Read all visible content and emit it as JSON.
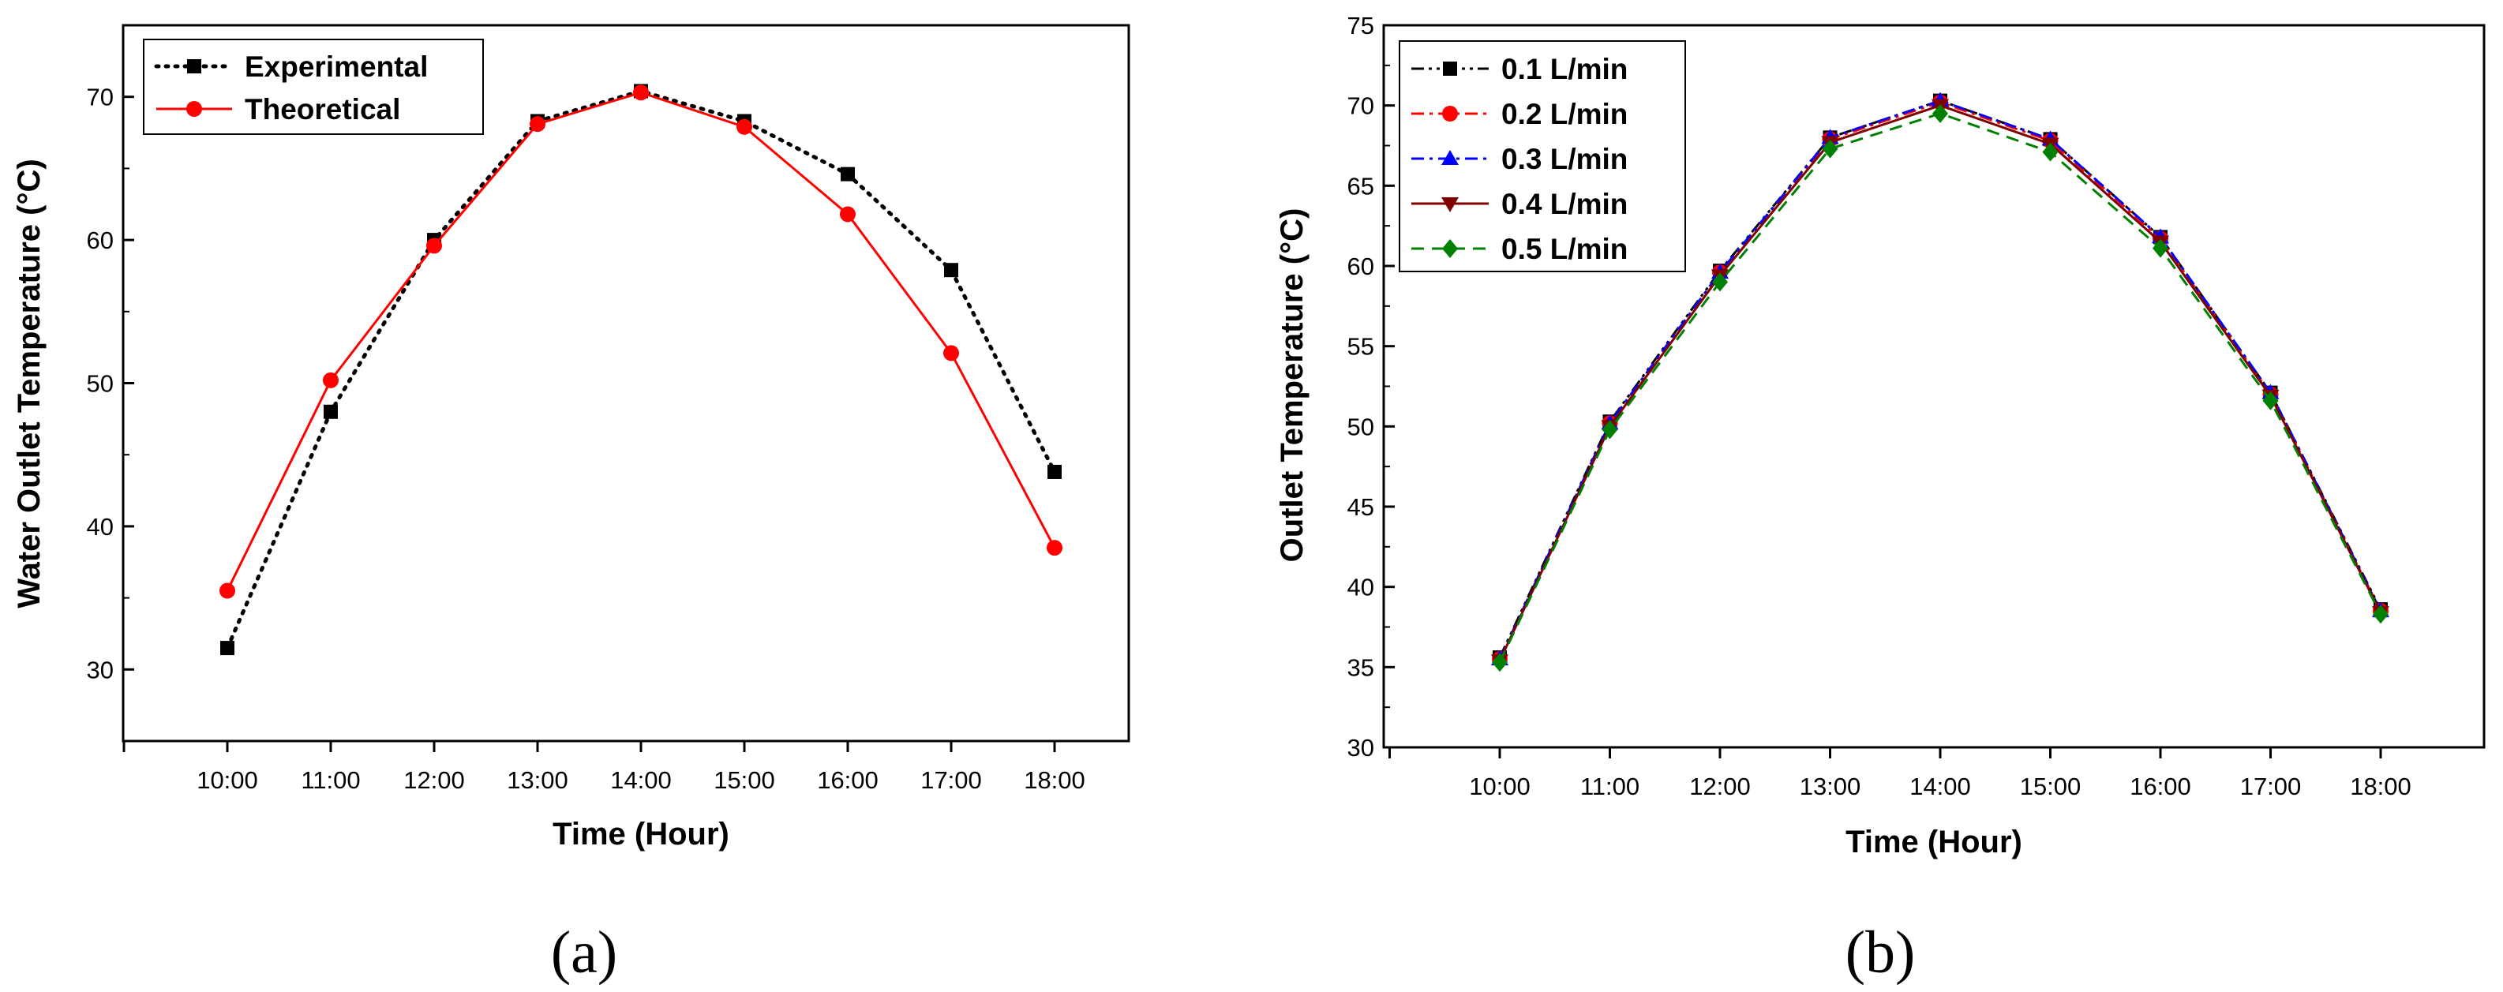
{
  "chart_data": [
    {
      "type": "line",
      "panel_label": "(a)",
      "xlabel": "Time (Hour)",
      "ylabel": "Water Outlet Temperature (°C)",
      "categories": [
        "10:00",
        "11:00",
        "12:00",
        "13:00",
        "14:00",
        "15:00",
        "16:00",
        "17:00",
        "18:00"
      ],
      "ylim": [
        25,
        75
      ],
      "yticks": [
        30,
        40,
        50,
        60,
        70
      ],
      "ytick_labels": [
        "30",
        "40",
        "50",
        "60",
        "70"
      ],
      "legend_position": "top-left",
      "grid": false,
      "series": [
        {
          "name": "Experimental",
          "values": [
            31.5,
            48.0,
            60.0,
            68.3,
            70.4,
            68.3,
            64.6,
            57.9,
            43.8
          ],
          "color": "#000000",
          "marker": "square",
          "line_style": "dotted"
        },
        {
          "name": "Theoretical",
          "values": [
            35.5,
            50.2,
            59.6,
            68.1,
            70.3,
            67.9,
            61.8,
            52.1,
            38.5
          ],
          "color": "#ff0000",
          "marker": "circle",
          "line_style": "solid"
        }
      ]
    },
    {
      "type": "line",
      "panel_label": "(b)",
      "xlabel": "Time (Hour)",
      "ylabel": "Outlet Temperature (°C)",
      "categories": [
        "10:00",
        "11:00",
        "12:00",
        "13:00",
        "14:00",
        "15:00",
        "16:00",
        "17:00",
        "18:00"
      ],
      "ylim": [
        30,
        75
      ],
      "yticks": [
        30,
        35,
        40,
        45,
        50,
        55,
        60,
        65,
        70,
        75
      ],
      "ytick_labels": [
        "30",
        "35",
        "40",
        "45",
        "50",
        "55",
        "60",
        "65",
        "70",
        "75"
      ],
      "legend_position": "top-left",
      "grid": false,
      "series": [
        {
          "name": "0.1 L/min",
          "values": [
            35.6,
            50.3,
            59.7,
            68.0,
            70.3,
            67.9,
            61.8,
            52.1,
            38.6
          ],
          "color": "#000000",
          "marker": "square",
          "line_style": "dashdotdot"
        },
        {
          "name": "0.2 L/min",
          "values": [
            35.5,
            50.2,
            59.6,
            67.9,
            70.2,
            67.8,
            61.7,
            52.0,
            38.5
          ],
          "color": "#ff0000",
          "marker": "circle",
          "line_style": "dashdot"
        },
        {
          "name": "0.3 L/min",
          "values": [
            35.5,
            50.2,
            59.6,
            68.0,
            70.3,
            67.9,
            61.8,
            52.1,
            38.5
          ],
          "color": "#0000ff",
          "marker": "triangle-up",
          "line_style": "dashdot"
        },
        {
          "name": "0.4 L/min",
          "values": [
            35.4,
            50.0,
            59.4,
            67.7,
            70.0,
            67.6,
            61.5,
            51.9,
            38.4
          ],
          "color": "#800000",
          "marker": "triangle-down",
          "line_style": "solid"
        },
        {
          "name": "0.5 L/min",
          "values": [
            35.3,
            49.8,
            59.0,
            67.3,
            69.5,
            67.1,
            61.1,
            51.6,
            38.3
          ],
          "color": "#008000",
          "marker": "diamond",
          "line_style": "dashed"
        }
      ]
    }
  ]
}
